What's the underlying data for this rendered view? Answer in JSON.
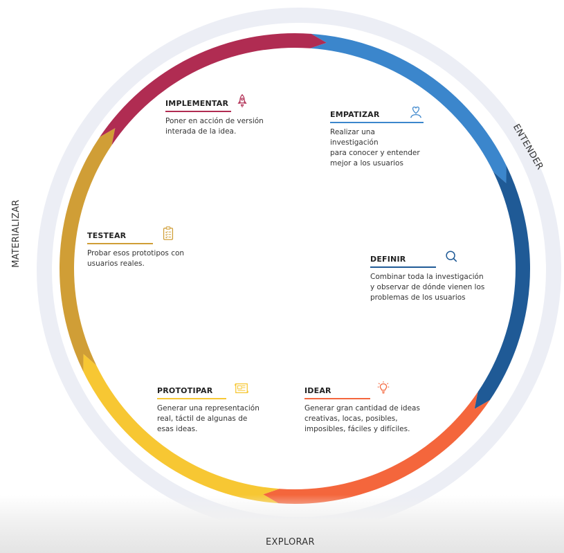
{
  "outer_labels": {
    "entender": "ENTENDER",
    "materializar": "MATERIALIZAR",
    "explorar": "EXPLORAR"
  },
  "stages": [
    {
      "id": "empatizar",
      "title": "EMPATIZAR",
      "desc": [
        "Realizar una investigación",
        "para conocer y entender",
        "mejor a los usuarios"
      ],
      "color": "#3b86cc",
      "icon": "heart-person-icon"
    },
    {
      "id": "definir",
      "title": "DEFINIR",
      "desc": [
        "Combinar toda la investigación",
        "y observar de dónde vienen los",
        "problemas de los usuarios"
      ],
      "color": "#1f5a96",
      "icon": "magnifier-icon"
    },
    {
      "id": "idear",
      "title": "IDEAR",
      "desc": [
        "Generar gran cantidad de ideas",
        "creativas, locas, posibles,",
        "imposibles, fáciles y difíciles."
      ],
      "color": "#f4663c",
      "icon": "lightbulb-icon"
    },
    {
      "id": "prototipar",
      "title": "PROTOTIPAR",
      "desc": [
        "Generar una representación",
        "real, táctil de algunas de",
        "esas ideas."
      ],
      "color": "#f7c733",
      "icon": "blueprint-icon"
    },
    {
      "id": "testear",
      "title": "TESTEAR",
      "desc": [
        "Probar esos prototipos con",
        "usuarios reales."
      ],
      "color": "#d09e36",
      "icon": "clipboard-icon"
    },
    {
      "id": "implementar",
      "title": "IMPLEMENTAR",
      "desc": [
        "Poner en acción de versión",
        "interada de la idea."
      ],
      "color": "#b02c52",
      "icon": "rocket-icon"
    }
  ]
}
